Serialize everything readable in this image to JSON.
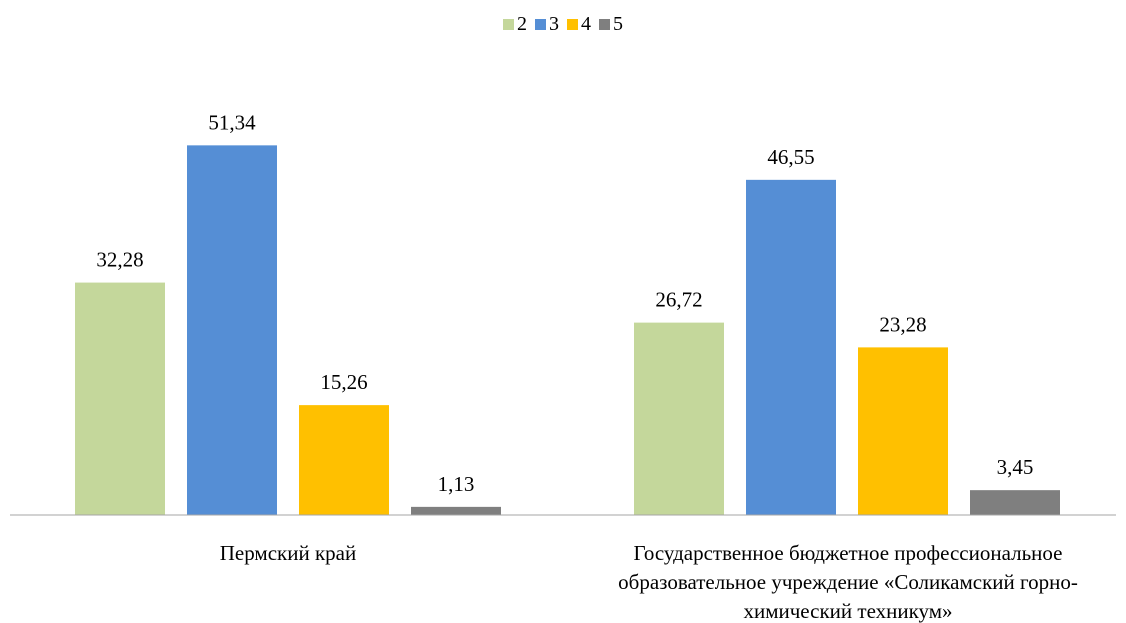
{
  "chart_data": {
    "type": "bar",
    "categories": [
      "Пермский край",
      "Государственное бюджетное профессиональное образовательное учреждение «Соликамский горно-химический техникум»"
    ],
    "series": [
      {
        "name": "2",
        "values": [
          32.28,
          26.72
        ],
        "labels": [
          "32,28",
          "26,72"
        ],
        "color": "#C4D79B"
      },
      {
        "name": "3",
        "values": [
          51.34,
          46.55
        ],
        "labels": [
          "51,34",
          "46,55"
        ],
        "color": "#558ED5"
      },
      {
        "name": "4",
        "values": [
          15.26,
          23.28
        ],
        "labels": [
          "15,26",
          "23,28"
        ],
        "color": "#FFC000"
      },
      {
        "name": "5",
        "values": [
          1.13,
          3.45
        ],
        "labels": [
          "1,13",
          "3,45"
        ],
        "color": "#7F7F7F"
      }
    ],
    "ylim": [
      0,
      55
    ],
    "legend_position": "top-center",
    "grid": false
  }
}
